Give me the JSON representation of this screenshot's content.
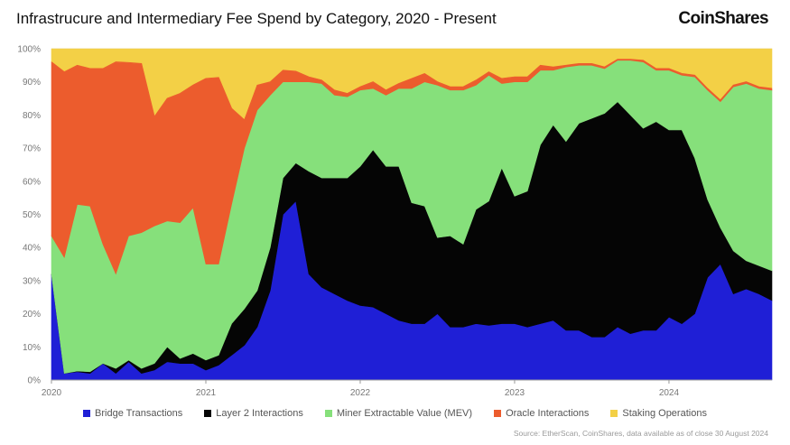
{
  "header": {
    "title": "Infrastrucure and Intermediary Fee Spend by Category, 2020 - Present",
    "logo": "CoinShares"
  },
  "footer": {
    "source": "Source: EtherScan, CoinShares, data available as of close 30 August 2024"
  },
  "chart_data": {
    "type": "area",
    "stacked": true,
    "title": "Infrastrucure and Intermediary Fee Spend by Category, 2020 - Present",
    "xlabel": "",
    "ylabel": "",
    "x_range": [
      2020.0,
      2024.667
    ],
    "ylim": [
      0,
      100
    ],
    "y_ticks": [
      "0%",
      "10%",
      "20%",
      "30%",
      "40%",
      "50%",
      "60%",
      "70%",
      "80%",
      "90%",
      "100%"
    ],
    "x_ticks": [
      {
        "value": 2020,
        "label": "2020"
      },
      {
        "value": 2021,
        "label": "2021"
      },
      {
        "value": 2022,
        "label": "2022"
      },
      {
        "value": 2023,
        "label": "2023"
      },
      {
        "value": 2024,
        "label": "2024"
      }
    ],
    "grid": "horizontal",
    "legend_position": "bottom",
    "x": [
      2020.0,
      2020.083,
      2020.167,
      2020.25,
      2020.333,
      2020.417,
      2020.5,
      2020.583,
      2020.667,
      2020.75,
      2020.833,
      2020.917,
      2021.0,
      2021.083,
      2021.167,
      2021.25,
      2021.333,
      2021.417,
      2021.5,
      2021.583,
      2021.667,
      2021.75,
      2021.833,
      2021.917,
      2022.0,
      2022.083,
      2022.167,
      2022.25,
      2022.333,
      2022.417,
      2022.5,
      2022.583,
      2022.667,
      2022.75,
      2022.833,
      2022.917,
      2023.0,
      2023.083,
      2023.167,
      2023.25,
      2023.333,
      2023.417,
      2023.5,
      2023.583,
      2023.667,
      2023.75,
      2023.833,
      2023.917,
      2024.0,
      2024.083,
      2024.167,
      2024.25,
      2024.333,
      2024.417,
      2024.5,
      2024.583,
      2024.667
    ],
    "cumulative_tops": [
      {
        "name": "Bridge Transactions",
        "color": "#1f1fd6",
        "values": [
          32,
          2,
          2.5,
          2,
          5,
          2,
          5.5,
          2,
          3,
          5.5,
          5,
          5,
          3,
          4.5,
          7.5,
          10.5,
          16,
          27,
          50,
          54,
          32,
          28,
          26,
          24,
          22.5,
          22,
          20,
          18,
          17,
          17,
          20,
          16,
          16,
          17,
          16.5,
          17,
          17,
          16,
          17,
          18,
          15,
          15,
          13,
          13,
          16,
          14,
          15,
          15,
          19,
          17,
          20,
          31,
          35,
          26,
          27.5,
          26,
          24
        ]
      },
      {
        "name": "Layer 2 Interactions",
        "color": "#050505",
        "values": [
          32,
          2,
          2.7,
          2.5,
          5,
          3.5,
          6,
          3.5,
          5,
          10,
          6.5,
          8,
          6,
          7.5,
          17,
          21.5,
          27,
          40,
          61,
          65.5,
          63,
          61,
          61,
          61,
          64.5,
          69.5,
          64.5,
          64.5,
          53.5,
          52.5,
          43,
          43.5,
          41,
          51.5,
          54,
          64,
          55.5,
          57,
          71,
          77,
          72,
          77.5,
          79,
          80.5,
          84,
          80,
          76,
          78,
          75.5,
          75.5,
          67,
          54.5,
          46,
          39,
          36,
          34.5,
          33
        ]
      },
      {
        "name": "Miner Extractable Value (MEV)",
        "color": "#86e07b",
        "values": [
          43.5,
          37,
          53,
          52.5,
          41,
          32,
          43.5,
          44.5,
          46.5,
          48,
          47.5,
          52,
          35,
          35,
          53,
          70,
          81.5,
          86,
          90,
          90,
          90,
          89.5,
          86,
          85.5,
          87.5,
          88,
          86,
          88,
          88,
          90,
          89,
          87.5,
          87.5,
          89,
          92,
          89.5,
          90,
          90,
          93.5,
          93.5,
          94.5,
          95,
          95,
          94,
          96.5,
          96.5,
          96,
          93.5,
          93.5,
          92,
          91.5,
          87.5,
          84,
          88.5,
          89.5,
          88,
          87.5
        ]
      },
      {
        "name": "Oracle Interactions",
        "color": "#ec5c2d",
        "values": [
          96,
          93,
          95,
          94,
          94,
          96,
          95.8,
          95.5,
          79.5,
          85,
          86.5,
          89,
          91,
          91.3,
          82,
          78.5,
          89,
          90,
          93.5,
          93.2,
          91.5,
          90.5,
          87.5,
          86.5,
          88.5,
          90,
          87.5,
          89.5,
          91,
          92.5,
          90,
          88.5,
          88.5,
          90.5,
          93,
          91,
          91.5,
          91.5,
          95,
          94.5,
          95,
          95.5,
          95.5,
          94.5,
          96.8,
          96.8,
          96.5,
          94,
          94,
          92.5,
          92,
          88,
          84.5,
          89,
          90,
          88.5,
          88
        ]
      },
      {
        "name": "Staking Operations",
        "color": "#f3d046",
        "values": [
          100,
          100,
          100,
          100,
          100,
          100,
          100,
          100,
          100,
          100,
          100,
          100,
          100,
          100,
          100,
          100,
          100,
          100,
          100,
          100,
          100,
          100,
          100,
          100,
          100,
          100,
          100,
          100,
          100,
          100,
          100,
          100,
          100,
          100,
          100,
          100,
          100,
          100,
          100,
          100,
          100,
          100,
          100,
          100,
          100,
          100,
          100,
          100,
          100,
          100,
          100,
          100,
          100,
          100,
          100,
          100,
          100
        ]
      }
    ]
  }
}
